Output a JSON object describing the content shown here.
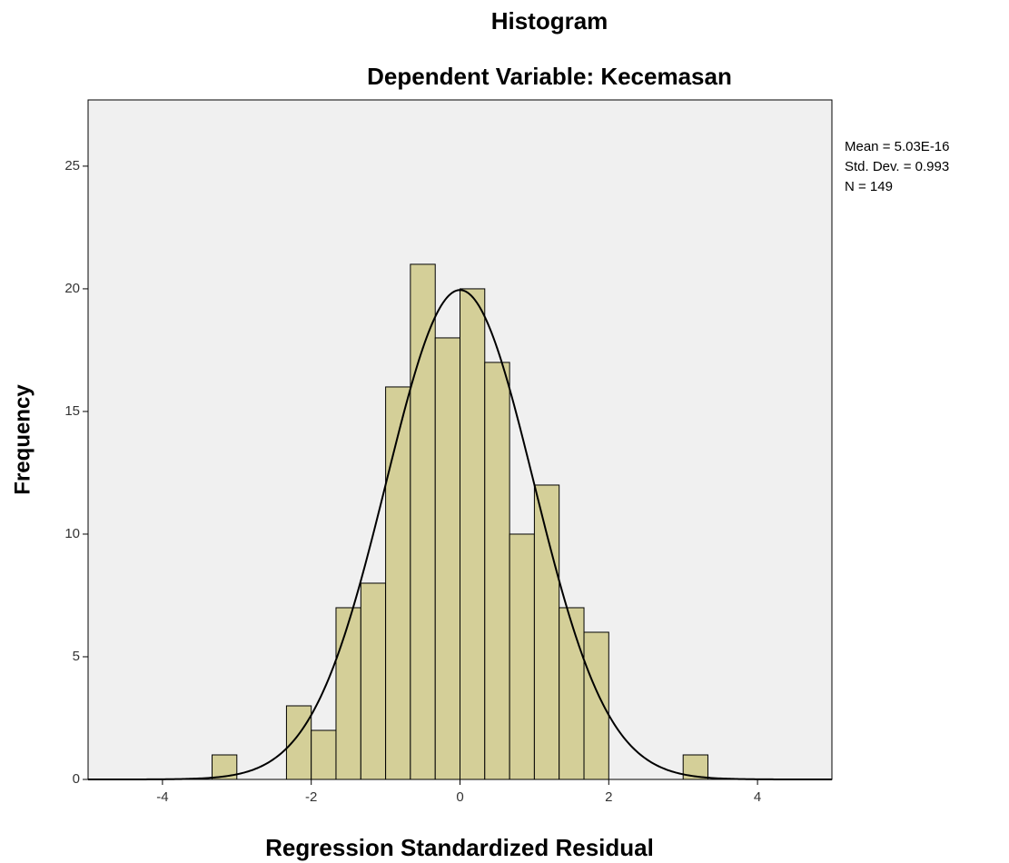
{
  "chart_data": {
    "type": "histogram",
    "title": "Histogram",
    "subtitle": "Dependent Variable: Kecemasan",
    "xlabel": "Regression Standardized Residual",
    "ylabel": "Frequency",
    "bins": [
      -3.333,
      -3,
      -2.667,
      -2.333,
      -2,
      -1.667,
      -1.333,
      -1,
      -0.667,
      -0.333,
      0,
      0.333,
      0.667,
      1,
      1.333,
      1.667,
      2,
      2.333,
      2.667,
      3,
      3.333
    ],
    "values": [
      1,
      0,
      0,
      3,
      2,
      7,
      8,
      16,
      21,
      18,
      20,
      17,
      10,
      12,
      7,
      6,
      0,
      0,
      0,
      1
    ],
    "color": "#d4cf98",
    "xlim": [
      -5,
      5
    ],
    "xticks": [
      -4,
      -2,
      0,
      2,
      4
    ],
    "ylim": [
      0,
      27.7
    ],
    "yticks": [
      0,
      5,
      10,
      15,
      20,
      25
    ],
    "stats": [
      {
        "value": 5.03e-16,
        "label": "Mean = 5.03E-16"
      },
      {
        "value": 0.993,
        "label": "Std. Dev. = 0.993"
      },
      {
        "value": 149,
        "label": "N = 149"
      }
    ]
  }
}
